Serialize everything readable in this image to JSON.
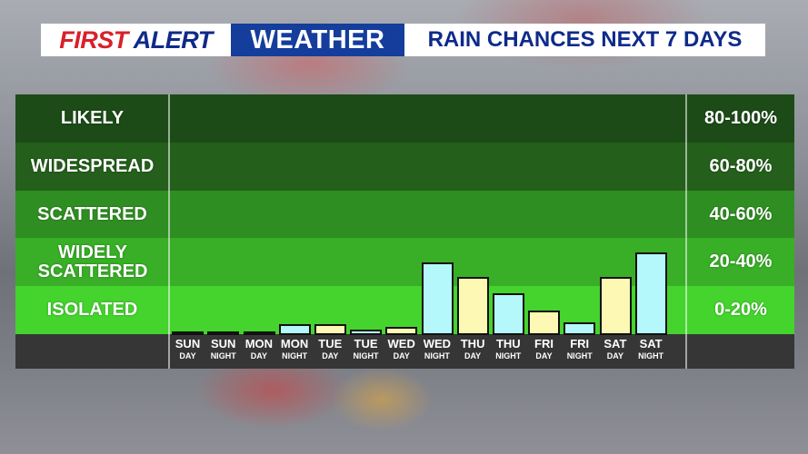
{
  "header": {
    "first": "FIRST",
    "alert": "ALERT",
    "weather": "WEATHER",
    "subtitle": "RAIN CHANCES NEXT 7 DAYS"
  },
  "colors": {
    "band_likely": "#1c4b17",
    "band_widespread": "#245f1b",
    "band_scattered": "#2f8e22",
    "band_widely_scattered": "#39ae27",
    "band_isolated": "#45d32e",
    "bar_day": "#fdf9b5",
    "bar_night": "#b4f8fc"
  },
  "chart_data": {
    "type": "bar",
    "title": "RAIN CHANCES NEXT 7 DAYS",
    "categories": [
      {
        "day": "SUN",
        "period": "DAY"
      },
      {
        "day": "SUN",
        "period": "NIGHT"
      },
      {
        "day": "MON",
        "period": "DAY"
      },
      {
        "day": "MON",
        "period": "NIGHT"
      },
      {
        "day": "TUE",
        "period": "DAY"
      },
      {
        "day": "TUE",
        "period": "NIGHT"
      },
      {
        "day": "WED",
        "period": "DAY"
      },
      {
        "day": "WED",
        "period": "NIGHT"
      },
      {
        "day": "THU",
        "period": "DAY"
      },
      {
        "day": "THU",
        "period": "NIGHT"
      },
      {
        "day": "FRI",
        "period": "DAY"
      },
      {
        "day": "FRI",
        "period": "NIGHT"
      },
      {
        "day": "SAT",
        "period": "DAY"
      },
      {
        "day": "SAT",
        "period": "NIGHT"
      }
    ],
    "values": [
      0,
      1,
      1,
      4,
      4,
      2,
      3,
      30,
      24,
      17,
      10,
      5,
      24,
      34
    ],
    "ylim": [
      0,
      100
    ],
    "bands": [
      {
        "label": "LIKELY",
        "range": "80-100%"
      },
      {
        "label": "WIDESPREAD",
        "range": "60-80%"
      },
      {
        "label": "SCATTERED",
        "range": "40-60%"
      },
      {
        "label": "WIDELY SCATTERED",
        "range": "20-40%"
      },
      {
        "label": "ISOLATED",
        "range": "0-20%"
      }
    ],
    "grid": false,
    "legend": "none"
  }
}
